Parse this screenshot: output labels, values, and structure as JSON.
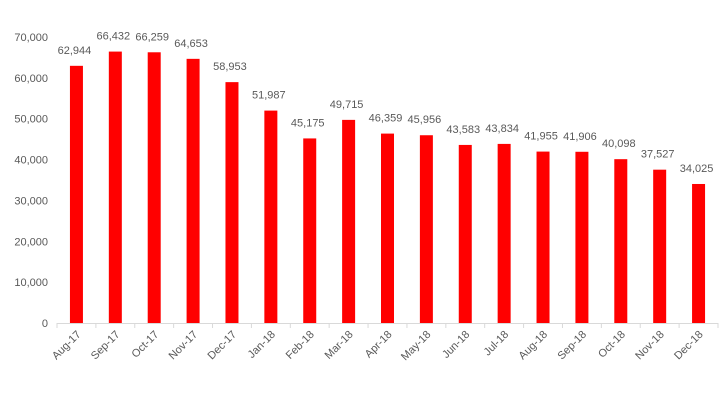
{
  "chart_data": {
    "type": "bar",
    "categories": [
      "Aug-17",
      "Sep-17",
      "Oct-17",
      "Nov-17",
      "Dec-17",
      "Jan-18",
      "Feb-18",
      "Mar-18",
      "Apr-18",
      "May-18",
      "Jun-18",
      "Jul-18",
      "Aug-18",
      "Sep-18",
      "Oct-18",
      "Nov-18",
      "Dec-18"
    ],
    "values": [
      62944,
      66432,
      66259,
      64653,
      58953,
      51987,
      45175,
      49715,
      46359,
      45956,
      43583,
      43834,
      41955,
      41906,
      40098,
      37527,
      34025
    ],
    "value_labels": [
      "62,944",
      "66,432",
      "66,259",
      "64,653",
      "58,953",
      "51,987",
      "45,175",
      "49,715",
      "46,359",
      "45,956",
      "43,583",
      "43,834",
      "41,955",
      "41,906",
      "40,098",
      "37,527",
      "34,025"
    ],
    "y_ticks": [
      0,
      10000,
      20000,
      30000,
      40000,
      50000,
      60000,
      70000
    ],
    "y_tick_labels": [
      "0",
      "10,000",
      "20,000",
      "30,000",
      "40,000",
      "50,000",
      "60,000",
      "70,000"
    ],
    "ylim": [
      0,
      70000
    ],
    "title": "",
    "xlabel": "",
    "ylabel": "",
    "grid": false,
    "legend": "none",
    "colors": {
      "bar": "#ff0000",
      "axis": "#d9d9d9",
      "text": "#595959"
    }
  }
}
